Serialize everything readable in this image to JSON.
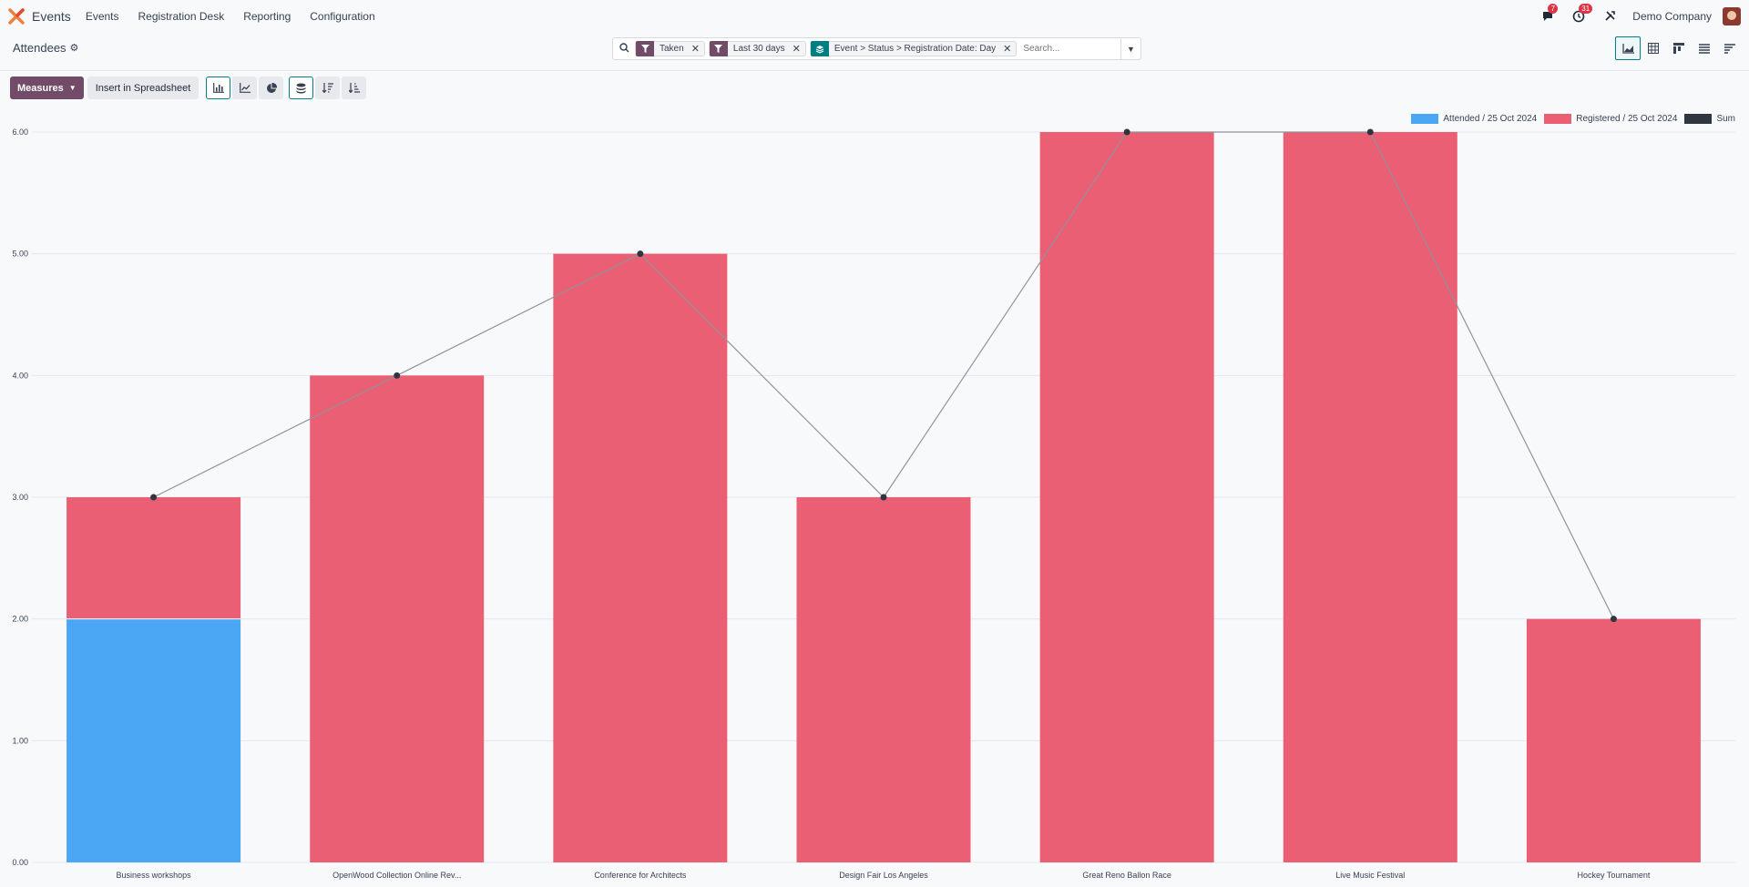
{
  "navbar": {
    "app_name": "Events",
    "menu": [
      "Events",
      "Registration Desk",
      "Reporting",
      "Configuration"
    ],
    "messages_count": "7",
    "activities_count": "31",
    "company": "Demo Company"
  },
  "control_panel": {
    "breadcrumb": "Attendees",
    "facets": [
      {
        "type": "filter",
        "label": "Taken"
      },
      {
        "type": "filter",
        "label": "Last 30 days"
      },
      {
        "type": "group",
        "label": "Event > Status > Registration Date: Day"
      }
    ],
    "search_placeholder": "Search..."
  },
  "toolbar": {
    "measures_label": "Measures",
    "insert_label": "Insert in Spreadsheet"
  },
  "colors": {
    "attended": "#4ba6f3",
    "registered": "#eb5f74",
    "sum": "#374151",
    "primary": "#714b67",
    "accent": "#017e84"
  },
  "chart_data": {
    "type": "bar",
    "stacked": true,
    "categories": [
      "Business workshops",
      "OpenWood Collection Online Rev...",
      "Conference for Architects",
      "Design Fair Los Angeles",
      "Great Reno Ballon Race",
      "Live Music Festival",
      "Hockey Tournament"
    ],
    "series": [
      {
        "name": "Attended / 25 Oct 2024",
        "values": [
          2,
          0,
          0,
          0,
          0,
          0,
          0
        ]
      },
      {
        "name": "Registered / 25 Oct 2024",
        "values": [
          1,
          4,
          5,
          3,
          6,
          6,
          2
        ]
      }
    ],
    "sum_line": {
      "name": "Sum",
      "values": [
        3,
        4,
        5,
        3,
        6,
        6,
        2
      ]
    },
    "ylim": [
      0,
      6
    ],
    "yticks": [
      "0.00",
      "1.00",
      "2.00",
      "3.00",
      "4.00",
      "5.00",
      "6.00"
    ],
    "grid": true,
    "legend_position": "top-right"
  }
}
